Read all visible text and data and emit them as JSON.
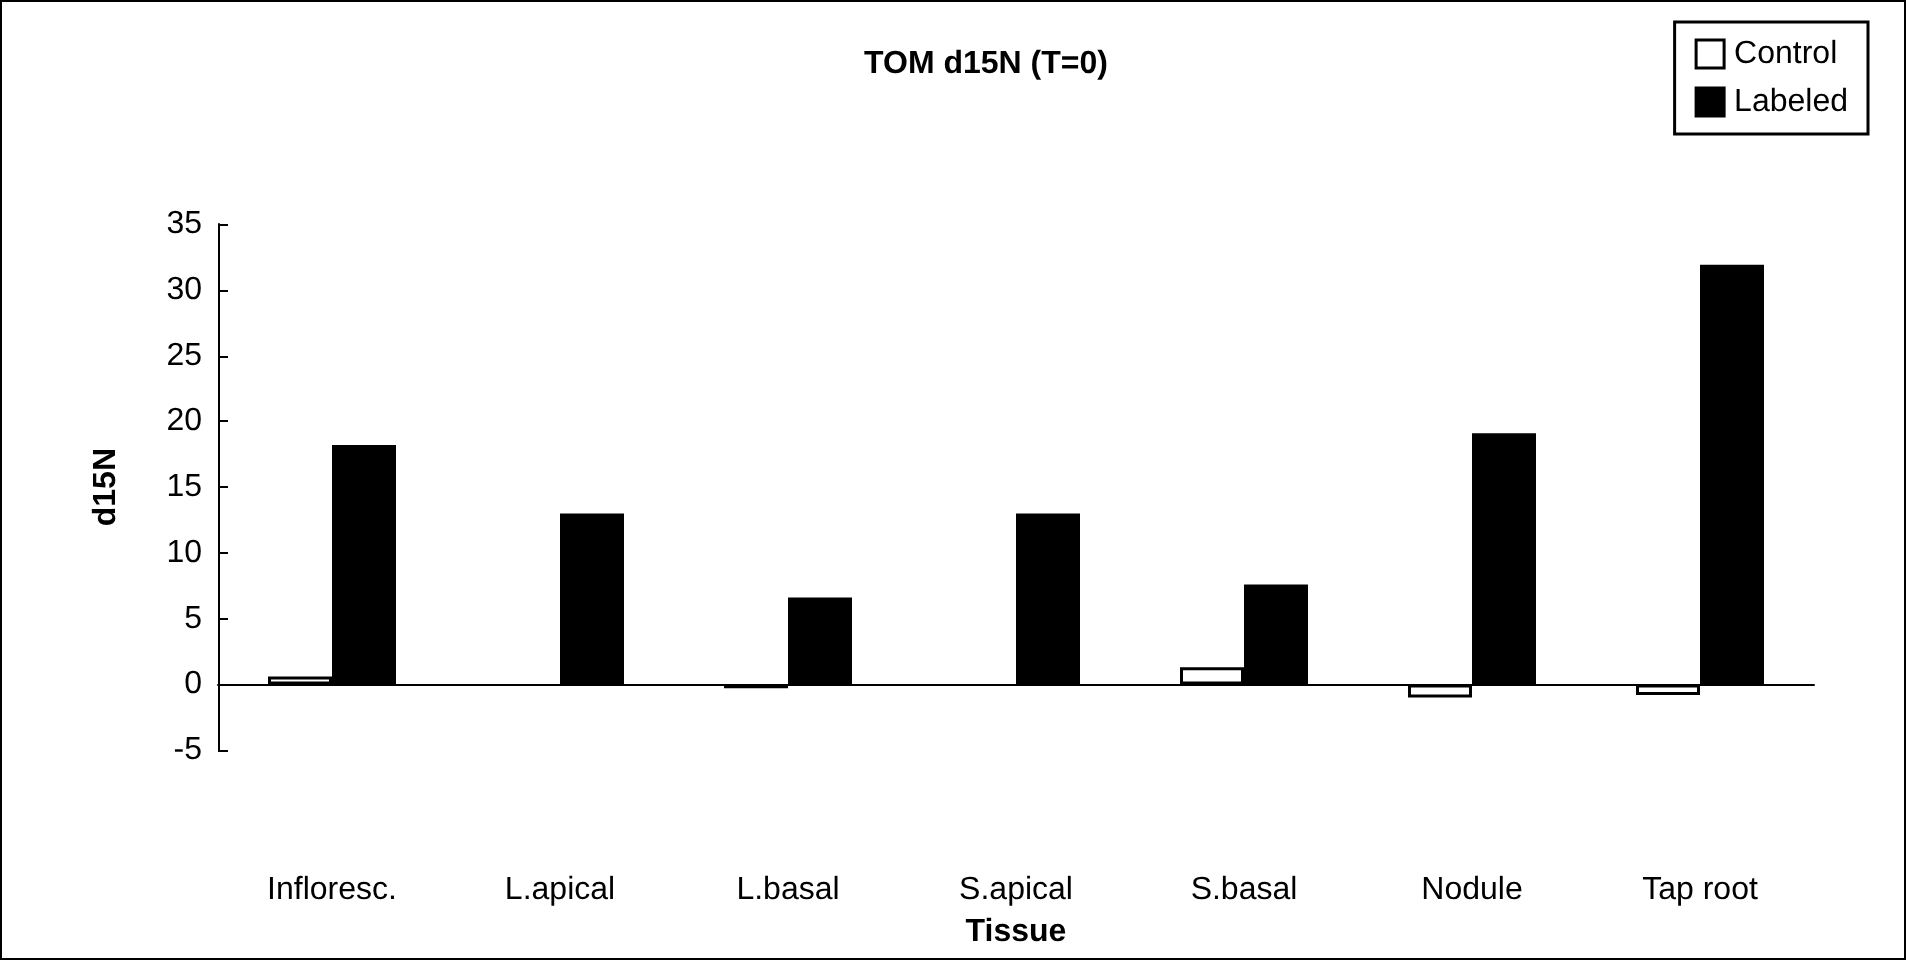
{
  "chart_data": {
    "type": "bar",
    "title": "TOM d15N (T=0)",
    "xlabel": "Tissue",
    "ylabel": "d15N",
    "categories": [
      "Infloresc.",
      "L.apical",
      "L.basal",
      "S.apical",
      "S.basal",
      "Nodule",
      "Tap root"
    ],
    "series": [
      {
        "name": "Control",
        "color": "#ffffff",
        "values": [
          0.6,
          null,
          -0.3,
          null,
          1.3,
          -1.0,
          -0.8
        ]
      },
      {
        "name": "Labeled",
        "color": "#000000",
        "values": [
          18.2,
          13.0,
          6.6,
          13.0,
          7.6,
          19.1,
          31.9
        ]
      }
    ],
    "ylim": [
      -5,
      35
    ],
    "yticks": [
      -5,
      0,
      5,
      10,
      15,
      20,
      25,
      30,
      35
    ],
    "legend": "top right"
  }
}
